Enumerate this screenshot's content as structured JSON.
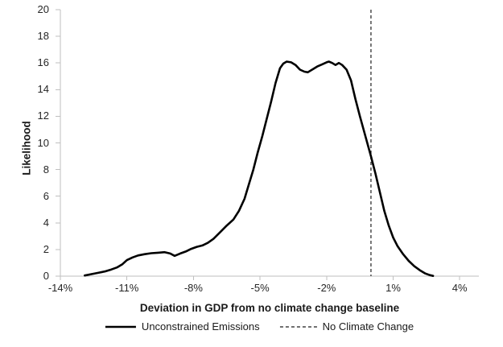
{
  "figure": {
    "background_color": "#ffffff",
    "axis_line_color": "#bfbfbf",
    "text_color": "#262626"
  },
  "chart_data": {
    "type": "line",
    "title": "",
    "xlabel": "Deviation in GDP from no climate change baseline",
    "ylabel": "Likelihood",
    "xlim": [
      -14,
      4.9
    ],
    "ylim": [
      0,
      20
    ],
    "grid": false,
    "x_tick_labels": [
      "-14%",
      "-11%",
      "-8%",
      "-5%",
      "-2%",
      "1%",
      "4%"
    ],
    "x_tick_values": [
      -14,
      -11,
      -8,
      -5,
      -2,
      1,
      4
    ],
    "y_tick_labels": [
      "0",
      "2",
      "4",
      "6",
      "8",
      "10",
      "12",
      "14",
      "16",
      "18",
      "20"
    ],
    "y_tick_values": [
      0,
      2,
      4,
      6,
      8,
      10,
      12,
      14,
      16,
      18,
      20
    ],
    "legend": {
      "position": "bottom-center"
    },
    "series": [
      {
        "name": "Unconstrained Emissions",
        "style": "solid",
        "color": "#000000",
        "points": [
          [
            -12.9,
            0.05
          ],
          [
            -12.6,
            0.15
          ],
          [
            -12.3,
            0.25
          ],
          [
            -12.0,
            0.35
          ],
          [
            -11.7,
            0.5
          ],
          [
            -11.45,
            0.65
          ],
          [
            -11.2,
            0.9
          ],
          [
            -11.0,
            1.2
          ],
          [
            -10.75,
            1.4
          ],
          [
            -10.5,
            1.55
          ],
          [
            -10.2,
            1.65
          ],
          [
            -9.9,
            1.72
          ],
          [
            -9.6,
            1.76
          ],
          [
            -9.3,
            1.8
          ],
          [
            -9.05,
            1.7
          ],
          [
            -8.85,
            1.52
          ],
          [
            -8.6,
            1.7
          ],
          [
            -8.35,
            1.85
          ],
          [
            -8.1,
            2.05
          ],
          [
            -7.85,
            2.2
          ],
          [
            -7.6,
            2.3
          ],
          [
            -7.35,
            2.5
          ],
          [
            -7.1,
            2.8
          ],
          [
            -6.8,
            3.3
          ],
          [
            -6.5,
            3.8
          ],
          [
            -6.2,
            4.25
          ],
          [
            -5.95,
            4.9
          ],
          [
            -5.7,
            5.8
          ],
          [
            -5.5,
            6.9
          ],
          [
            -5.3,
            8.0
          ],
          [
            -5.1,
            9.3
          ],
          [
            -4.9,
            10.5
          ],
          [
            -4.7,
            11.8
          ],
          [
            -4.5,
            13.1
          ],
          [
            -4.3,
            14.5
          ],
          [
            -4.1,
            15.6
          ],
          [
            -3.95,
            15.95
          ],
          [
            -3.8,
            16.1
          ],
          [
            -3.6,
            16.05
          ],
          [
            -3.4,
            15.85
          ],
          [
            -3.2,
            15.5
          ],
          [
            -3.0,
            15.35
          ],
          [
            -2.85,
            15.3
          ],
          [
            -2.6,
            15.55
          ],
          [
            -2.4,
            15.75
          ],
          [
            -2.2,
            15.9
          ],
          [
            -2.0,
            16.05
          ],
          [
            -1.9,
            16.1
          ],
          [
            -1.75,
            16.0
          ],
          [
            -1.6,
            15.85
          ],
          [
            -1.45,
            16.0
          ],
          [
            -1.3,
            15.85
          ],
          [
            -1.1,
            15.5
          ],
          [
            -0.9,
            14.7
          ],
          [
            -0.7,
            13.3
          ],
          [
            -0.5,
            12.0
          ],
          [
            -0.3,
            10.8
          ],
          [
            -0.15,
            9.9
          ],
          [
            0.0,
            9.0
          ],
          [
            0.2,
            7.7
          ],
          [
            0.4,
            6.3
          ],
          [
            0.6,
            4.9
          ],
          [
            0.8,
            3.8
          ],
          [
            1.0,
            2.9
          ],
          [
            1.2,
            2.25
          ],
          [
            1.45,
            1.65
          ],
          [
            1.7,
            1.15
          ],
          [
            1.95,
            0.75
          ],
          [
            2.2,
            0.45
          ],
          [
            2.45,
            0.2
          ],
          [
            2.65,
            0.08
          ],
          [
            2.8,
            0.02
          ]
        ]
      },
      {
        "name": "No Climate Change",
        "style": "dashed-vertical-line",
        "color": "#404040",
        "x": 0
      }
    ]
  }
}
